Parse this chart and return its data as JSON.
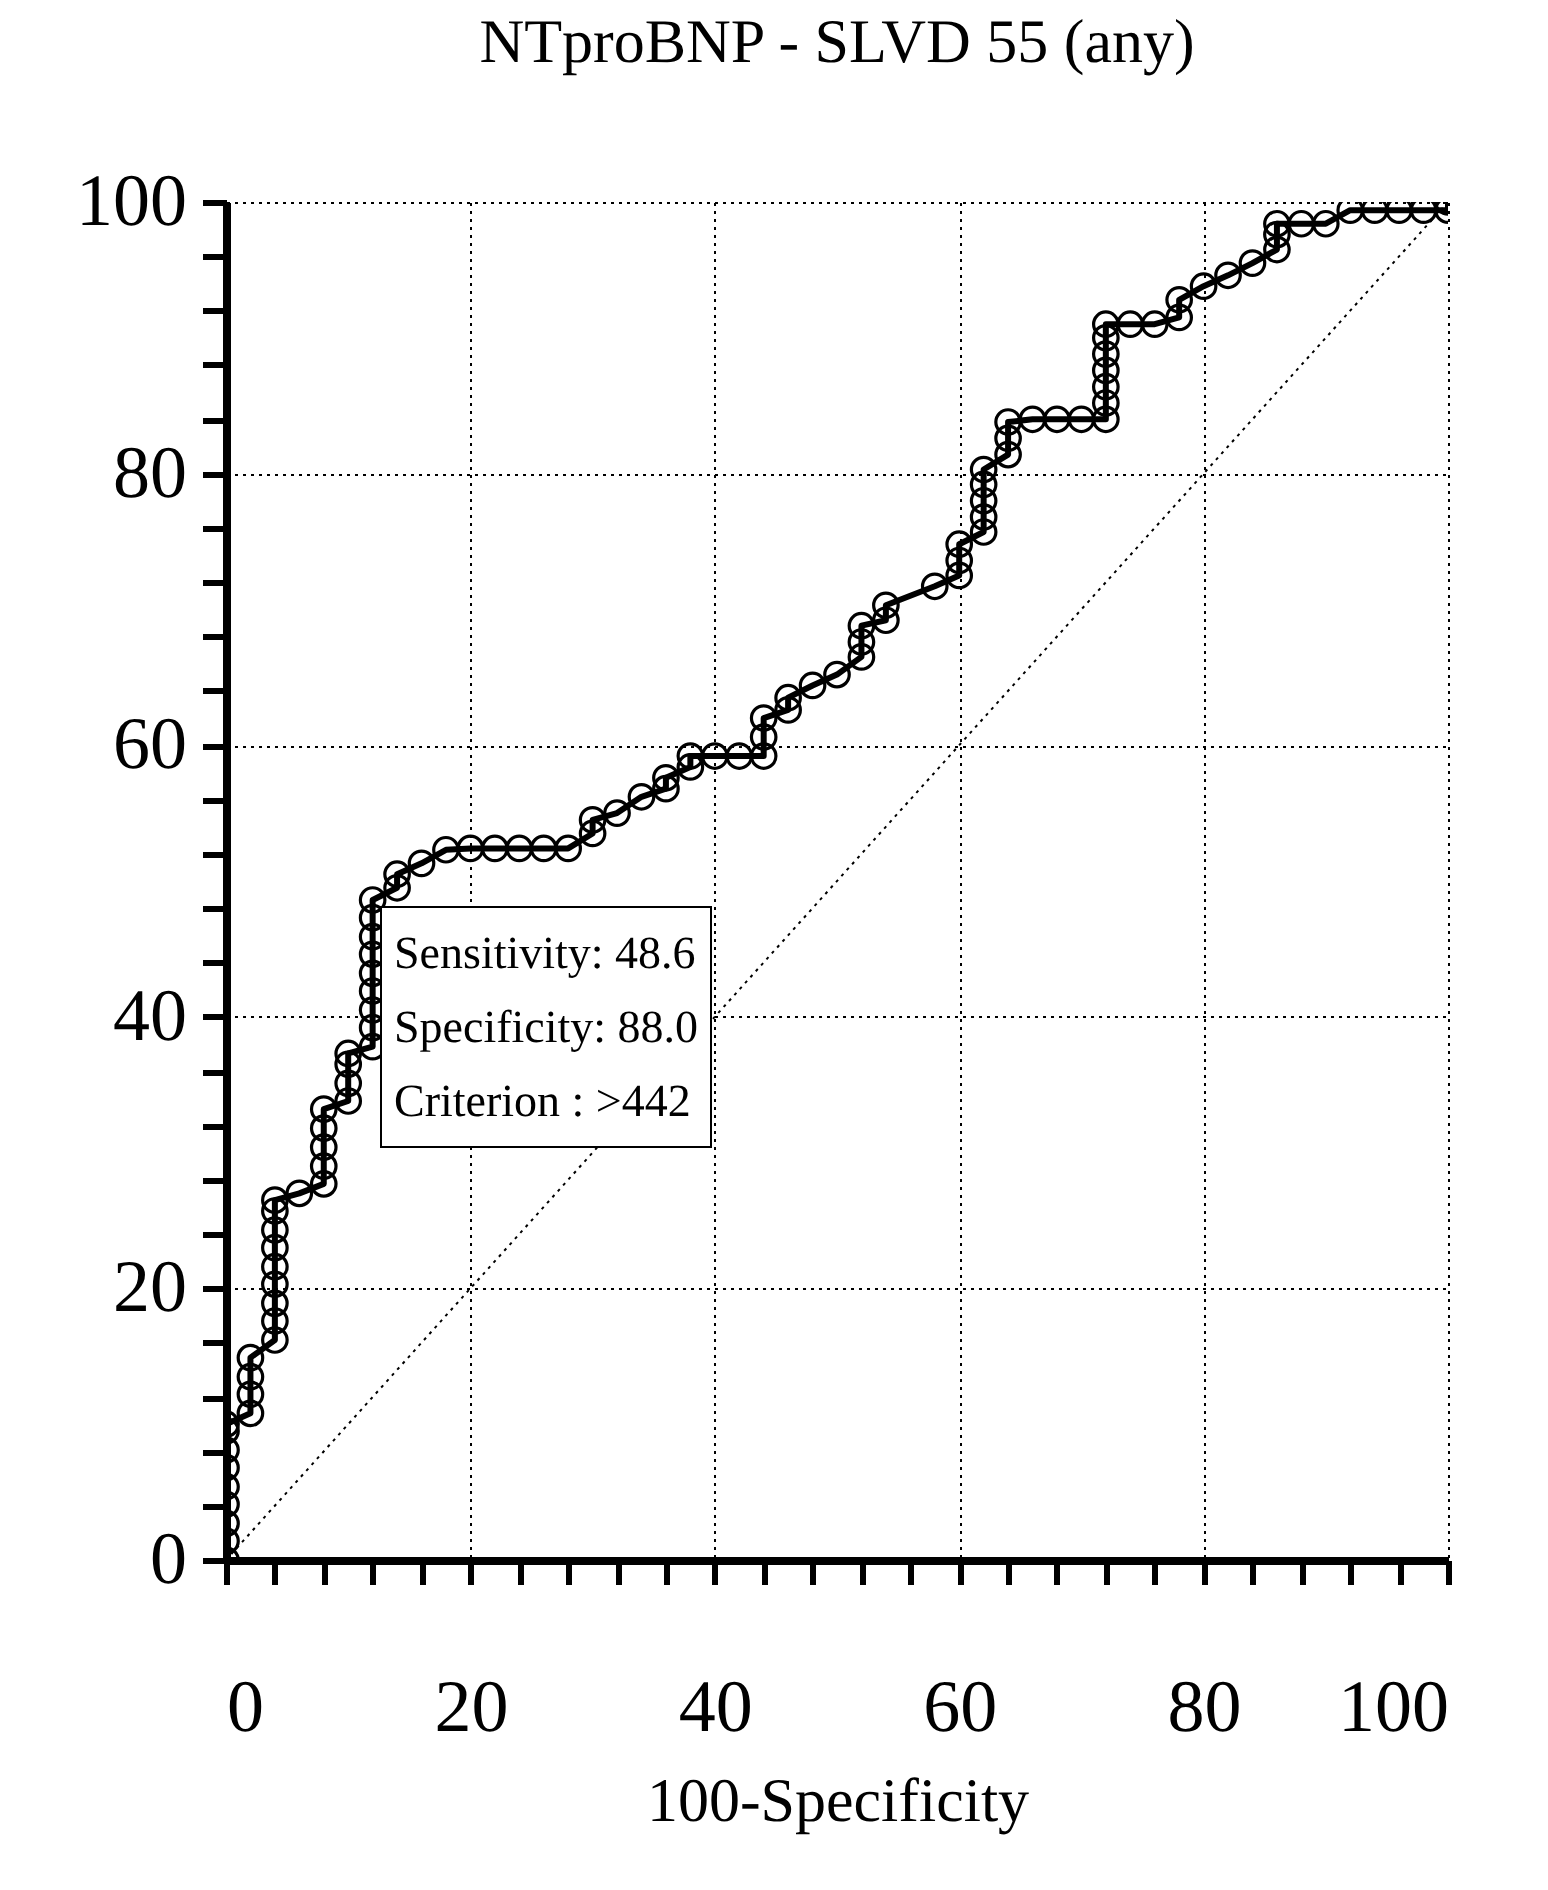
{
  "chart_data": {
    "type": "line",
    "title": "NTproBNP - SLVD 55 (any)",
    "xlabel": "100-Specificity",
    "xlim": [
      0,
      100
    ],
    "ylim": [
      0,
      100
    ],
    "xticks": [
      0,
      {
        "value": 4,
        "label": null
      },
      {
        "value": 8,
        "label": null
      },
      {
        "value": 12,
        "label": null
      },
      {
        "value": 16,
        "label": null
      },
      20,
      {
        "value": 24,
        "label": null
      },
      {
        "value": 28,
        "label": null
      },
      {
        "value": 32,
        "label": null
      },
      {
        "value": 36,
        "label": null
      },
      40,
      {
        "value": 44,
        "label": null
      },
      {
        "value": 48,
        "label": null
      },
      {
        "value": 52,
        "label": null
      },
      {
        "value": 56,
        "label": null
      },
      60,
      {
        "value": 64,
        "label": null
      },
      {
        "value": 68,
        "label": null
      },
      {
        "value": 72,
        "label": null
      },
      {
        "value": 76,
        "label": null
      },
      80,
      {
        "value": 84,
        "label": null
      },
      {
        "value": 88,
        "label": null
      },
      {
        "value": 92,
        "label": null
      },
      {
        "value": 96,
        "label": null
      },
      100
    ],
    "yticks": [
      0,
      {
        "value": 4,
        "label": null
      },
      {
        "value": 8,
        "label": null
      },
      {
        "value": 12,
        "label": null
      },
      {
        "value": 16,
        "label": null
      },
      20,
      {
        "value": 24,
        "label": null
      },
      {
        "value": 28,
        "label": null
      },
      {
        "value": 32,
        "label": null
      },
      {
        "value": 36,
        "label": null
      },
      40,
      {
        "value": 44,
        "label": null
      },
      {
        "value": 48,
        "label": null
      },
      {
        "value": 52,
        "label": null
      },
      {
        "value": 56,
        "label": null
      },
      60,
      {
        "value": 64,
        "label": null
      },
      {
        "value": 68,
        "label": null
      },
      {
        "value": 72,
        "label": null
      },
      {
        "value": 76,
        "label": null
      },
      80,
      {
        "value": 84,
        "label": null
      },
      {
        "value": 88,
        "label": null
      },
      {
        "value": 92,
        "label": null
      },
      {
        "value": 96,
        "label": null
      },
      100
    ],
    "grid": true,
    "annotations": [
      "Sensitivity: 48.6",
      "Specificity: 88.0",
      "Criterion : >442"
    ],
    "series": [
      {
        "color": "#000000",
        "marker": "circle",
        "line_style": "solid",
        "x": [
          0,
          0,
          0,
          0,
          0,
          0,
          0,
          0,
          0,
          2,
          2,
          2,
          2,
          4,
          4,
          4,
          4,
          4,
          4,
          4,
          4,
          4,
          6,
          8,
          8,
          8,
          8,
          8,
          10,
          10,
          10,
          10,
          12,
          12,
          12,
          12,
          12,
          12,
          12,
          12,
          12,
          14,
          14,
          16,
          18,
          20,
          22,
          24,
          26,
          28,
          30,
          30,
          32,
          34,
          36,
          36,
          38,
          38,
          40,
          42,
          44,
          44,
          44,
          46,
          46,
          48,
          50,
          52,
          52,
          52,
          54,
          54,
          58,
          60,
          60,
          60,
          62,
          62,
          62,
          62,
          62,
          64,
          64,
          64,
          66,
          68,
          70,
          72,
          72,
          72,
          72,
          72,
          72,
          72,
          74,
          76,
          78,
          78,
          80,
          82,
          84,
          86,
          86,
          86,
          88,
          90,
          92,
          94,
          96,
          98,
          100,
          100
        ],
        "values": [
          0,
          1.4,
          2.7,
          4.1,
          5.4,
          6.8,
          8.1,
          9.5,
          10,
          10.8,
          12.2,
          13.5,
          14.9,
          16.2,
          17.6,
          18.9,
          20.3,
          21.6,
          23,
          24.3,
          25.7,
          26.5,
          27,
          27.7,
          29,
          30.4,
          31.8,
          33.2,
          33.8,
          35.1,
          36.5,
          37.3,
          37.8,
          39.2,
          40.5,
          41.9,
          43.2,
          44.6,
          45.9,
          47.3,
          48.6,
          49.5,
          50.5,
          51.3,
          52.3,
          52.4,
          52.4,
          52.4,
          52.4,
          52.4,
          53.5,
          54.5,
          55,
          56.2,
          56.8,
          57.6,
          58.4,
          59.2,
          59.2,
          59.2,
          59.2,
          60.6,
          62,
          62.6,
          63.5,
          64.4,
          65.2,
          66.5,
          67.6,
          68.8,
          69.2,
          70.3,
          71.7,
          72.5,
          73.6,
          74.8,
          75.7,
          76.8,
          78,
          79.2,
          80.3,
          81.4,
          82.6,
          83.8,
          84,
          84,
          84,
          84,
          85.2,
          86.4,
          87.6,
          88.8,
          90,
          91,
          91,
          91,
          91.5,
          92.8,
          93.8,
          94.6,
          95.5,
          96.5,
          97.6,
          98.4,
          98.4,
          98.4,
          99.4,
          99.4,
          99.4,
          99.4,
          99.4,
          100
        ]
      },
      {
        "color": "#000000",
        "marker": "none",
        "line_style": "dotted",
        "x": [
          0,
          100
        ],
        "values": [
          0,
          100
        ]
      }
    ]
  }
}
